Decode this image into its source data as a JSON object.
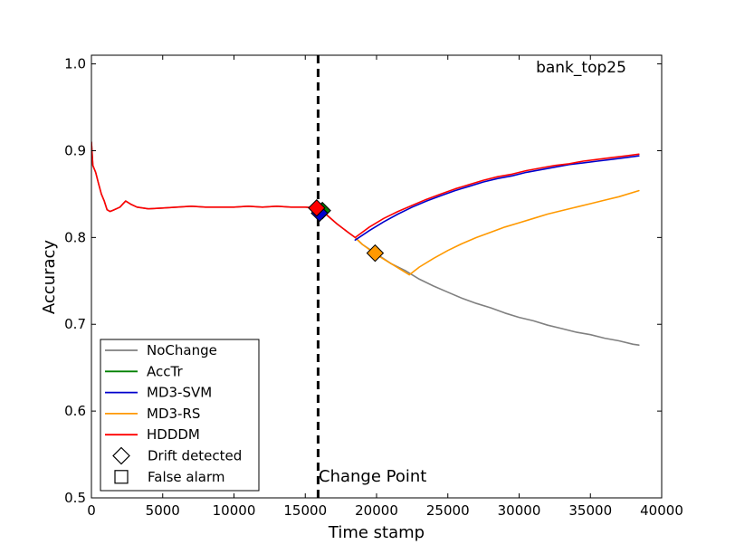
{
  "chart_data": {
    "type": "line",
    "title": "bank_top25",
    "xlabel": "Time stamp",
    "ylabel": "Accuracy",
    "xlim": [
      0,
      40000
    ],
    "ylim": [
      0.5,
      1.01
    ],
    "xticks": [
      0,
      5000,
      10000,
      15000,
      20000,
      25000,
      30000,
      35000,
      40000
    ],
    "xtick_labels": [
      "0",
      "5000",
      "10000",
      "15000",
      "20000",
      "25000",
      "30000",
      "35000",
      "40000"
    ],
    "yticks": [
      0.5,
      0.6,
      0.7,
      0.8,
      0.9,
      1.0
    ],
    "ytick_labels": [
      "0.5",
      "0.6",
      "0.7",
      "0.8",
      "0.9",
      "1.0"
    ],
    "grid": false,
    "legend_position": "bottom-left",
    "annotation": {
      "text": "Change Point",
      "x": 15900
    },
    "change_point_x": 15900,
    "series": [
      {
        "name": "NoChange",
        "color": "#808080",
        "x": [
          0,
          100,
          300,
          500,
          700,
          900,
          1100,
          1300,
          1600,
          2000,
          2400,
          2800,
          3200,
          4000,
          5000,
          6000,
          7000,
          8000,
          9000,
          10000,
          11000,
          12000,
          13000,
          14000,
          15000,
          15900,
          16500,
          17200,
          18000,
          18500,
          19000,
          20000,
          21000,
          22000,
          23000,
          24000,
          25000,
          26000,
          27000,
          28000,
          29000,
          30000,
          31000,
          32000,
          33000,
          34000,
          35000,
          36000,
          37000,
          38000,
          38400
        ],
        "y": [
          0.91,
          0.883,
          0.875,
          0.862,
          0.85,
          0.842,
          0.832,
          0.83,
          0.832,
          0.835,
          0.842,
          0.838,
          0.835,
          0.833,
          0.834,
          0.835,
          0.836,
          0.835,
          0.835,
          0.835,
          0.836,
          0.835,
          0.836,
          0.835,
          0.835,
          0.834,
          0.826,
          0.816,
          0.806,
          0.8,
          0.792,
          0.781,
          0.77,
          0.762,
          0.752,
          0.744,
          0.737,
          0.73,
          0.724,
          0.719,
          0.713,
          0.708,
          0.704,
          0.699,
          0.695,
          0.691,
          0.688,
          0.684,
          0.681,
          0.677,
          0.676
        ]
      },
      {
        "name": "AccTr",
        "color": "#008000",
        "x": [
          15900,
          16200
        ],
        "y": [
          0.834,
          0.832
        ]
      },
      {
        "name": "MD3-SVM",
        "color": "#0000cc",
        "x": [
          18500,
          19500,
          20500,
          21500,
          22500,
          23500,
          24500,
          25500,
          26500,
          27500,
          28500,
          29500,
          30500,
          31500,
          32500,
          33500,
          34500,
          35500,
          36500,
          37500,
          38400
        ],
        "y": [
          0.797,
          0.808,
          0.818,
          0.827,
          0.835,
          0.842,
          0.848,
          0.854,
          0.859,
          0.864,
          0.868,
          0.871,
          0.875,
          0.878,
          0.881,
          0.884,
          0.886,
          0.888,
          0.89,
          0.892,
          0.894
        ]
      },
      {
        "name": "MD3-RS",
        "color": "#ff9900",
        "x": [
          18500,
          19000,
          20000,
          21000,
          22300,
          23000,
          24000,
          25000,
          26000,
          27000,
          28000,
          29000,
          30000,
          31000,
          32000,
          33000,
          34000,
          35000,
          36000,
          37000,
          38400
        ],
        "y": [
          0.8,
          0.792,
          0.78,
          0.77,
          0.757,
          0.766,
          0.776,
          0.785,
          0.793,
          0.8,
          0.806,
          0.812,
          0.817,
          0.822,
          0.827,
          0.831,
          0.835,
          0.839,
          0.843,
          0.847,
          0.854
        ]
      },
      {
        "name": "HDDDM",
        "color": "#ff0000",
        "x": [
          0,
          100,
          300,
          500,
          700,
          900,
          1100,
          1300,
          1600,
          2000,
          2400,
          2800,
          3200,
          4000,
          5000,
          6000,
          7000,
          8000,
          9000,
          10000,
          11000,
          12000,
          13000,
          14000,
          15000,
          15900,
          16500,
          17200,
          18000,
          18500,
          19500,
          20500,
          21500,
          22500,
          23500,
          24500,
          25500,
          26500,
          27500,
          28500,
          29500,
          30500,
          31500,
          32500,
          33500,
          34500,
          35500,
          36500,
          37500,
          38400
        ],
        "y": [
          0.91,
          0.883,
          0.875,
          0.862,
          0.85,
          0.842,
          0.832,
          0.83,
          0.832,
          0.835,
          0.842,
          0.838,
          0.835,
          0.833,
          0.834,
          0.835,
          0.836,
          0.835,
          0.835,
          0.835,
          0.836,
          0.835,
          0.836,
          0.835,
          0.835,
          0.834,
          0.826,
          0.816,
          0.806,
          0.8,
          0.812,
          0.822,
          0.83,
          0.837,
          0.844,
          0.85,
          0.856,
          0.861,
          0.866,
          0.87,
          0.873,
          0.877,
          0.88,
          0.883,
          0.885,
          0.888,
          0.89,
          0.892,
          0.894,
          0.896
        ]
      }
    ],
    "markers": [
      {
        "series": "AccTr",
        "type": "Drift detected",
        "x": 16200,
        "y": 0.831,
        "color": "#008000"
      },
      {
        "series": "MD3-SVM",
        "type": "Drift detected",
        "x": 16000,
        "y": 0.828,
        "color": "#0000cc"
      },
      {
        "series": "HDDDM",
        "type": "Drift detected",
        "x": 15800,
        "y": 0.834,
        "color": "#ff0000"
      },
      {
        "series": "MD3-RS",
        "type": "Drift detected",
        "x": 19900,
        "y": 0.782,
        "color": "#ff9900"
      }
    ],
    "legend": [
      {
        "label": "NoChange",
        "kind": "line",
        "color": "#808080"
      },
      {
        "label": "AccTr",
        "kind": "line",
        "color": "#008000"
      },
      {
        "label": "MD3-SVM",
        "kind": "line",
        "color": "#0000cc"
      },
      {
        "label": "MD3-RS",
        "kind": "line",
        "color": "#ff9900"
      },
      {
        "label": "HDDDM",
        "kind": "line",
        "color": "#ff0000"
      },
      {
        "label": "Drift detected",
        "kind": "diamond",
        "color": "#000000"
      },
      {
        "label": "False alarm",
        "kind": "square",
        "color": "#000000"
      }
    ]
  }
}
